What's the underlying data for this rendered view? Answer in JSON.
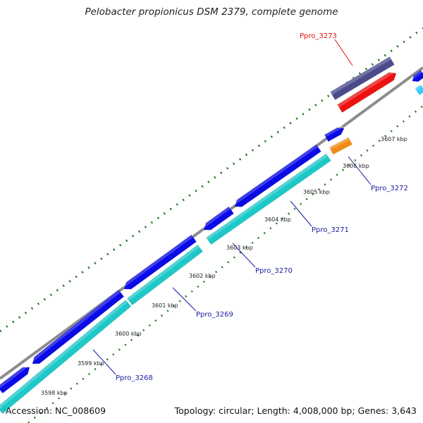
{
  "title": "Pelobacter propionicus DSM 2379, complete genome",
  "footer": {
    "accession": "Accession: NC_008609",
    "summary": "Topology: circular; Length: 4,008,000 bp; Genes: 3,643"
  },
  "colors": {
    "backbone": "#8c8c8c",
    "forward_cds": "#0a0ae6",
    "reverse_cds": "#1ec8c8",
    "rna_dark": "#4b4b8c",
    "rna_red": "#ee1111",
    "orange_feature": "#f08c14",
    "light_blue_feature": "#33ccff",
    "tick_dots": "#1e781e",
    "label_default": "#1a1aa0",
    "label_highlight": "#e01010"
  },
  "ticks": [
    {
      "label": "3598 kbp"
    },
    {
      "label": "3599 kbp"
    },
    {
      "label": "3600 kbp"
    },
    {
      "label": "3601 kbp"
    },
    {
      "label": "3602 kbp"
    },
    {
      "label": "3603 kbp"
    },
    {
      "label": "3604 kbp"
    },
    {
      "label": "3605 kbp"
    },
    {
      "label": "3606 kbp"
    },
    {
      "label": "3607 kbp"
    }
  ],
  "gene_labels": [
    {
      "name": "Ppro_3268",
      "color": "#1a1aa0"
    },
    {
      "name": "Ppro_3269",
      "color": "#1a1aa0"
    },
    {
      "name": "Ppro_3270",
      "color": "#1a1aa0"
    },
    {
      "name": "Ppro_3271",
      "color": "#1a1aa0"
    },
    {
      "name": "Ppro_3272",
      "color": "#1a1aa0"
    },
    {
      "name": "Ppro_3273",
      "color": "#e01010"
    }
  ]
}
